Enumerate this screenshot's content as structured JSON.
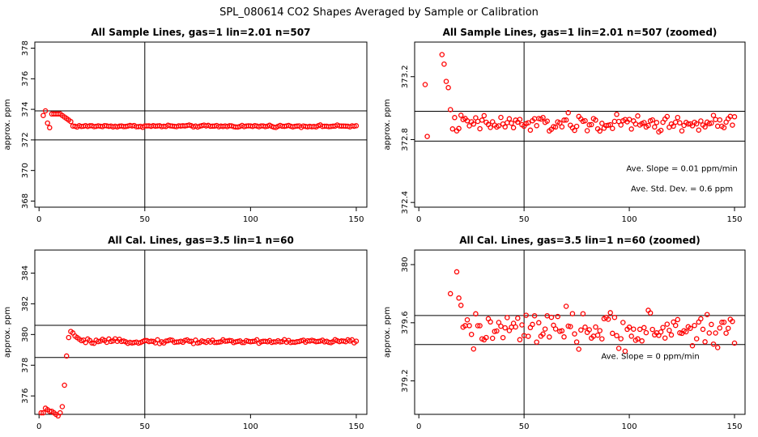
{
  "figure": {
    "title": "SPL_080614  CO2 Shapes Averaged by Sample or Calibration"
  },
  "chart_data": [
    {
      "type": "scatter",
      "title": "All Sample Lines, gas=1 lin=2.01 n=507",
      "ylabel": "approx. ppm",
      "xlim": [
        -2,
        155
      ],
      "ylim": [
        367.6,
        378.4
      ],
      "xticks": [
        0,
        50,
        100,
        150
      ],
      "yticks": [
        368,
        370,
        372,
        374,
        376,
        378
      ],
      "hlines": [
        373.9,
        372.0
      ],
      "vline": 50,
      "series": [
        {
          "x": [
            2,
            3,
            4,
            5,
            6,
            7,
            8,
            9,
            10,
            11,
            12,
            13,
            14,
            15
          ],
          "y": [
            373.6,
            373.9,
            373.1,
            372.8,
            373.7,
            373.7,
            373.7,
            373.7,
            373.7,
            373.6,
            373.5,
            373.4,
            373.3,
            373.2
          ]
        }
      ],
      "flat_segment": {
        "x_start": 16,
        "x_end": 150,
        "level": 372.9,
        "jitter": 0.04
      },
      "annotations": []
    },
    {
      "type": "scatter",
      "title": "All Sample Lines, gas=1 lin=2.01 n=507 (zoomed)",
      "ylabel": "approx. ppm",
      "xlim": [
        -2,
        155
      ],
      "ylim": [
        372.37,
        373.42
      ],
      "xticks": [
        0,
        50,
        100,
        150
      ],
      "yticks": [
        372.4,
        372.8,
        373.2
      ],
      "hlines": [
        372.98,
        372.79
      ],
      "vline": 50,
      "series": [
        {
          "x": [
            3,
            4,
            11,
            12,
            13,
            14,
            15
          ],
          "y": [
            373.15,
            372.82,
            373.34,
            373.28,
            373.17,
            373.13,
            372.99
          ]
        }
      ],
      "flat_segment": {
        "x_start": 16,
        "x_end": 150,
        "level": 372.9,
        "jitter": 0.035
      },
      "annotations": [
        {
          "text": "Ave. Slope =  0.01  ppm/min",
          "x": 125,
          "y": 372.6
        },
        {
          "text": "Ave. Std. Dev. =  0.6  ppm",
          "x": 125,
          "y": 372.47
        }
      ]
    },
    {
      "type": "scatter",
      "title": "All Cal. Lines, gas=3.5 lin=1 n=60",
      "ylabel": "approx. ppm",
      "xlim": [
        -2,
        155
      ],
      "ylim": [
        374.8,
        385.5
      ],
      "xticks": [
        0,
        50,
        100,
        150
      ],
      "yticks": [
        376,
        378,
        380,
        382,
        384
      ],
      "hlines": [
        380.6,
        378.5
      ],
      "vline": 50,
      "series": [
        {
          "x": [
            1,
            2,
            3,
            4,
            5,
            6,
            7,
            8,
            9,
            10,
            11,
            12,
            13,
            14,
            15,
            16,
            17,
            18,
            19,
            20
          ],
          "y": [
            374.9,
            374.9,
            375.2,
            375.1,
            375.0,
            375.0,
            374.9,
            374.8,
            374.7,
            374.9,
            375.3,
            376.7,
            378.6,
            379.8,
            380.2,
            380.1,
            379.9,
            379.8,
            379.7,
            379.6
          ]
        }
      ],
      "flat_segment": {
        "x_start": 21,
        "x_end": 150,
        "level": 379.55,
        "jitter": 0.08
      },
      "annotations": []
    },
    {
      "type": "scatter",
      "title": "All Cal. Lines, gas=3.5 lin=1 n=60 (zoomed)",
      "ylabel": "approx. ppm",
      "xlim": [
        -2,
        155
      ],
      "ylim": [
        378.97,
        380.1
      ],
      "xticks": [
        0,
        50,
        100,
        150
      ],
      "yticks": [
        379.2,
        379.6,
        380.0
      ],
      "hlines": [
        379.65,
        379.45
      ],
      "vline": 50,
      "series": [
        {
          "x": [
            15,
            18,
            19,
            20,
            21,
            22,
            23,
            24,
            25,
            26
          ],
          "y": [
            379.8,
            379.95,
            379.77,
            379.72,
            379.57,
            379.58,
            379.62,
            379.58,
            379.52,
            379.42
          ]
        }
      ],
      "flat_segment": {
        "x_start": 27,
        "x_end": 150,
        "level": 379.55,
        "jitter": 0.075
      },
      "annotations": [
        {
          "text": "Ave. Slope =  0  ppm/min",
          "x": 110,
          "y": 379.35
        }
      ]
    }
  ]
}
